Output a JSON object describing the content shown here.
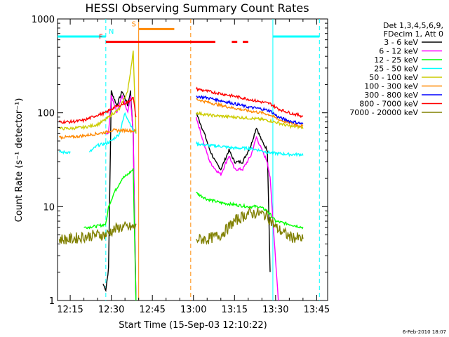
{
  "chart_data": {
    "type": "line",
    "title": "HESSI Observing Summary Count Rates",
    "xlabel": "Start Time (15-Sep-03 12:10:22)",
    "ylabel": "Count Rate (s⁻¹ detector⁻¹)",
    "y_scale": "log",
    "ylim": [
      1,
      1000
    ],
    "xlim": [
      "12:10:22",
      "13:49:00"
    ],
    "x_tick_labels": [
      "12:15",
      "12:30",
      "12:45",
      "13:00",
      "13:15",
      "13:30",
      "13:45"
    ],
    "y_tick_labels": [
      "1",
      "10",
      "100",
      "1000"
    ],
    "legend_header": [
      "Det 1,3,4,5,6,9,",
      "FDecim 1, Att 0"
    ],
    "legend_placement": "right",
    "series": [
      {
        "name": "3 - 6 keV",
        "color": "#000000",
        "points": [
          [
            "12:27",
            1.5
          ],
          [
            "12:28",
            1.3
          ],
          [
            "12:29",
            2.2
          ],
          [
            "12:30",
            170
          ],
          [
            "12:32",
            120
          ],
          [
            "12:34",
            170
          ],
          [
            "12:36",
            120
          ],
          [
            "12:37",
            170
          ],
          [
            "12:38",
            60
          ],
          [
            "12:39",
            1
          ],
          [
            "13:01",
            100
          ],
          [
            "13:04",
            60
          ],
          [
            "13:06",
            40
          ],
          [
            "13:08",
            30
          ],
          [
            "13:10",
            25
          ],
          [
            "13:13",
            40
          ],
          [
            "13:15",
            30
          ],
          [
            "13:18",
            30
          ],
          [
            "13:21",
            45
          ],
          [
            "13:23",
            70
          ],
          [
            "13:25",
            50
          ],
          [
            "13:27",
            40
          ],
          [
            "13:28",
            2
          ]
        ]
      },
      {
        "name": "6 - 12 keV",
        "color": "#ff00ff",
        "points": [
          [
            "12:28",
            60
          ],
          [
            "12:29",
            60
          ],
          [
            "12:30",
            150
          ],
          [
            "12:32",
            100
          ],
          [
            "12:34",
            150
          ],
          [
            "12:36",
            100
          ],
          [
            "12:37",
            150
          ],
          [
            "12:38",
            60
          ],
          [
            "12:39",
            1
          ],
          [
            "13:01",
            90
          ],
          [
            "13:04",
            45
          ],
          [
            "13:06",
            30
          ],
          [
            "13:08",
            25
          ],
          [
            "13:10",
            22
          ],
          [
            "13:13",
            35
          ],
          [
            "13:15",
            25
          ],
          [
            "13:18",
            25
          ],
          [
            "13:21",
            35
          ],
          [
            "13:23",
            55
          ],
          [
            "13:25",
            40
          ],
          [
            "13:27",
            30
          ],
          [
            "13:28",
            20
          ],
          [
            "13:31",
            1
          ]
        ]
      },
      {
        "name": "12 - 25 keV",
        "color": "#00ff00",
        "points": [
          [
            "12:11",
            6
          ],
          [
            "12:20",
            6
          ],
          [
            "12:25",
            6.2
          ],
          [
            "12:28",
            6.5
          ],
          [
            "12:29",
            10
          ],
          [
            "12:31",
            14
          ],
          [
            "12:34",
            20
          ],
          [
            "12:36",
            22
          ],
          [
            "12:38",
            25
          ],
          [
            "12:39",
            1
          ],
          [
            "13:01",
            14
          ],
          [
            "13:05",
            12
          ],
          [
            "13:10",
            11
          ],
          [
            "13:15",
            10.5
          ],
          [
            "13:20",
            10
          ],
          [
            "13:24",
            10
          ],
          [
            "13:27",
            9
          ],
          [
            "13:30",
            7
          ],
          [
            "13:35",
            6.5
          ],
          [
            "13:40",
            6
          ],
          [
            "13:46",
            6
          ]
        ]
      },
      {
        "name": "25 - 50 keV",
        "color": "#00ffff",
        "points": [
          [
            "12:11",
            38
          ],
          [
            "12:15",
            38
          ],
          [
            "12:22",
            38
          ],
          [
            "12:25",
            45
          ],
          [
            "12:28",
            47
          ],
          [
            "12:30",
            50
          ],
          [
            "12:33",
            60
          ],
          [
            "12:35",
            100
          ],
          [
            "12:38",
            65
          ],
          [
            "12:39",
            63
          ],
          [
            "13:01",
            47
          ],
          [
            "13:05",
            45
          ],
          [
            "13:10",
            44
          ],
          [
            "13:15",
            42
          ],
          [
            "13:20",
            42
          ],
          [
            "13:24",
            40
          ],
          [
            "13:27",
            38
          ],
          [
            "13:30",
            37
          ],
          [
            "13:35",
            36
          ],
          [
            "13:40",
            36
          ],
          [
            "13:46",
            35
          ]
        ]
      },
      {
        "name": "50 - 100 keV",
        "color": "#cccc00",
        "points": [
          [
            "12:11",
            68
          ],
          [
            "12:15",
            68
          ],
          [
            "12:20",
            70
          ],
          [
            "12:25",
            75
          ],
          [
            "12:28",
            85
          ],
          [
            "12:30",
            95
          ],
          [
            "12:33",
            110
          ],
          [
            "12:36",
            170
          ],
          [
            "12:38",
            450
          ],
          [
            "12:39",
            60
          ],
          [
            "13:01",
            100
          ],
          [
            "13:05",
            95
          ],
          [
            "13:10",
            92
          ],
          [
            "13:15",
            90
          ],
          [
            "13:20",
            88
          ],
          [
            "13:25",
            85
          ],
          [
            "13:28",
            82
          ],
          [
            "13:31",
            78
          ],
          [
            "13:35",
            72
          ],
          [
            "13:40",
            70
          ],
          [
            "13:46",
            70
          ]
        ]
      },
      {
        "name": "100 - 300 keV",
        "color": "#ff8800",
        "points": [
          [
            "12:11",
            55
          ],
          [
            "12:15",
            55
          ],
          [
            "12:20",
            57
          ],
          [
            "12:25",
            60
          ],
          [
            "12:28",
            62
          ],
          [
            "12:30",
            65
          ],
          [
            "12:33",
            65
          ],
          [
            "12:36",
            65
          ],
          [
            "12:38",
            64
          ],
          [
            "12:39",
            64
          ],
          [
            "13:01",
            140
          ],
          [
            "13:05",
            130
          ],
          [
            "13:10",
            120
          ],
          [
            "13:15",
            112
          ],
          [
            "13:20",
            105
          ],
          [
            "13:25",
            100
          ],
          [
            "13:28",
            95
          ],
          [
            "13:31",
            85
          ],
          [
            "13:35",
            78
          ],
          [
            "13:40",
            72
          ],
          [
            "13:46",
            68
          ]
        ]
      },
      {
        "name": "300 - 800 keV",
        "color": "#0000ff",
        "points": [
          [
            "13:01",
            150
          ],
          [
            "13:05",
            145
          ],
          [
            "13:10",
            135
          ],
          [
            "13:15",
            125
          ],
          [
            "13:20",
            115
          ],
          [
            "13:25",
            110
          ],
          [
            "13:28",
            105
          ],
          [
            "13:31",
            90
          ],
          [
            "13:35",
            82
          ],
          [
            "13:40",
            76
          ],
          [
            "13:46",
            72
          ]
        ]
      },
      {
        "name": "800 - 7000 keV",
        "color": "#ff0000",
        "points": [
          [
            "12:11",
            80
          ],
          [
            "12:15",
            80
          ],
          [
            "12:20",
            83
          ],
          [
            "12:25",
            95
          ],
          [
            "12:28",
            100
          ],
          [
            "12:30",
            110
          ],
          [
            "12:33",
            120
          ],
          [
            "12:36",
            130
          ],
          [
            "12:38",
            145
          ],
          [
            "12:39",
            90
          ],
          [
            "13:01",
            180
          ],
          [
            "13:05",
            170
          ],
          [
            "13:10",
            160
          ],
          [
            "13:15",
            150
          ],
          [
            "13:20",
            140
          ],
          [
            "13:25",
            130
          ],
          [
            "13:28",
            125
          ],
          [
            "13:31",
            110
          ],
          [
            "13:35",
            100
          ],
          [
            "13:40",
            92
          ],
          [
            "13:46",
            88
          ]
        ]
      },
      {
        "name": "7000 - 20000 keV",
        "color": "#808000",
        "points": [
          [
            "12:11",
            4.5
          ],
          [
            "12:15",
            4.5
          ],
          [
            "12:20",
            4.8
          ],
          [
            "12:25",
            5
          ],
          [
            "12:28",
            5
          ],
          [
            "12:30",
            5.5
          ],
          [
            "12:33",
            6
          ],
          [
            "12:36",
            6
          ],
          [
            "12:38",
            6
          ],
          [
            "12:39",
            6
          ],
          [
            "13:01",
            4.5
          ],
          [
            "13:05",
            4.5
          ],
          [
            "13:10",
            5
          ],
          [
            "13:15",
            7
          ],
          [
            "13:20",
            8.5
          ],
          [
            "13:24",
            8.5
          ],
          [
            "13:27",
            8
          ],
          [
            "13:30",
            6
          ],
          [
            "13:35",
            4.8
          ],
          [
            "13:40",
            4.5
          ],
          [
            "13:46",
            4.5
          ]
        ]
      }
    ],
    "flags": [
      {
        "label": "N",
        "color": "#00ffff",
        "level": 650,
        "segments": [
          [
            "12:10:22",
            "12:28"
          ],
          [
            "13:29",
            "13:46"
          ]
        ]
      },
      {
        "label": "S",
        "color": "#ff8800",
        "level": 780,
        "segments": [
          [
            "12:40",
            "12:53"
          ]
        ]
      },
      {
        "label": "F",
        "color": "#ff0000",
        "level": 570,
        "segments": [
          [
            "12:28",
            "13:08"
          ],
          [
            "13:14",
            "13:16"
          ],
          [
            "13:18",
            "13:20"
          ]
        ]
      }
    ],
    "vertical_lines": [
      {
        "time": "12:28",
        "color": "#00ffff",
        "style": "dashed"
      },
      {
        "time": "12:40",
        "color": "#ff8800",
        "style": "solid"
      },
      {
        "time": "12:59",
        "color": "#ff8800",
        "style": "dashed"
      },
      {
        "time": "13:29",
        "color": "#00ffff",
        "style": "solid"
      },
      {
        "time": "13:46",
        "color": "#00ffff",
        "style": "dashed"
      }
    ]
  },
  "footer": {
    "date_stamp": "6-Feb-2010 18:07"
  }
}
